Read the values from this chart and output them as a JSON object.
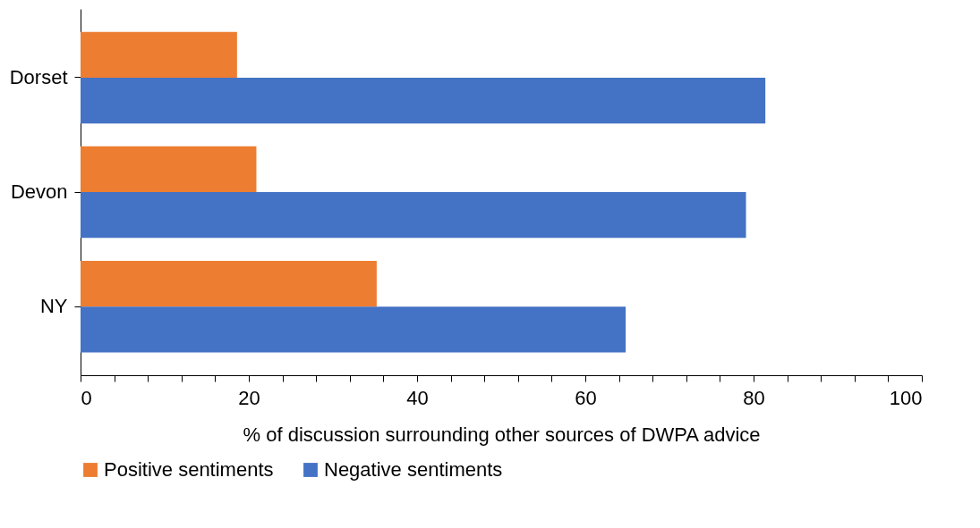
{
  "chart_data": {
    "type": "bar",
    "orientation": "horizontal",
    "xlabel": "% of discussion surrounding other sources of DWPA advice",
    "categories": [
      "Dorset",
      "Devon",
      "NY"
    ],
    "series": [
      {
        "name": "Positive sentiments",
        "color": "#ed7d31",
        "values": [
          18.6,
          20.9,
          35.2
        ]
      },
      {
        "name": "Negative sentiments",
        "color": "#4472c4",
        "values": [
          81.4,
          79.1,
          64.8
        ]
      }
    ],
    "xlim": [
      0,
      100
    ],
    "xticks": [
      0,
      {
        "value": 4,
        "label": null
      },
      {
        "value": 8,
        "label": null
      },
      {
        "value": 12,
        "label": null
      },
      {
        "value": 16,
        "label": null
      },
      20,
      {
        "value": 24,
        "label": null
      },
      {
        "value": 28,
        "label": null
      },
      {
        "value": 32,
        "label": null
      },
      {
        "value": 36,
        "label": null
      },
      40,
      {
        "value": 44,
        "label": null
      },
      {
        "value": 48,
        "label": null
      },
      {
        "value": 52,
        "label": null
      },
      {
        "value": 56,
        "label": null
      },
      60,
      {
        "value": 64,
        "label": null
      },
      {
        "value": 68,
        "label": null
      },
      {
        "value": 72,
        "label": null
      },
      {
        "value": 76,
        "label": null
      },
      80,
      {
        "value": 84,
        "label": null
      },
      {
        "value": 88,
        "label": null
      },
      {
        "value": 92,
        "label": null
      },
      {
        "value": 96,
        "label": null
      },
      100
    ],
    "grid": false,
    "legend": "bottom"
  }
}
